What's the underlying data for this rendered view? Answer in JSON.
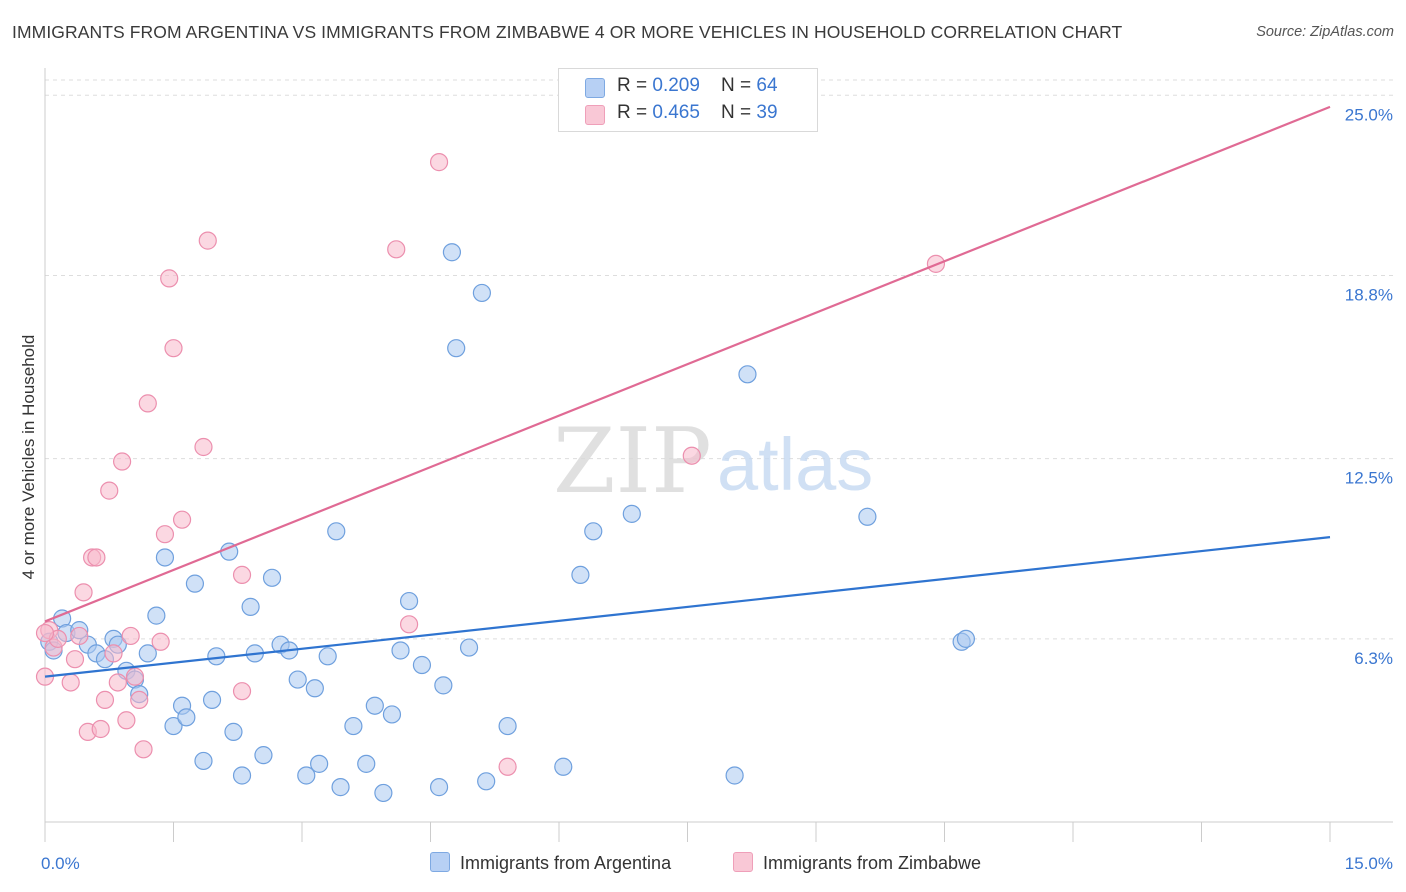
{
  "title": "IMMIGRANTS FROM ARGENTINA VS IMMIGRANTS FROM ZIMBABWE 4 OR MORE VEHICLES IN HOUSEHOLD CORRELATION CHART",
  "source": "Source: ZipAtlas.com",
  "watermark": {
    "zip": "ZIP",
    "atlas": "atlas"
  },
  "legend": {
    "row1": {
      "r_label": "R = ",
      "r_value": "0.209",
      "n_label": "N = ",
      "n_value": "64"
    },
    "row2": {
      "r_label": "R = ",
      "r_value": "0.465",
      "n_label": "N = ",
      "n_value": "39"
    }
  },
  "bottom_legend": {
    "argentina": "Immigrants from Argentina",
    "zimbabwe": "Immigrants from Zimbabwe"
  },
  "colors": {
    "argentina_fill": "#a9c8f0",
    "argentina_stroke": "#6fa0de",
    "argentina_line": "#2f74d0",
    "zimbabwe_fill": "#f7b8cb",
    "zimbabwe_stroke": "#ec8fae",
    "zimbabwe_line": "#e06a94",
    "tick_label": "#3a76d0"
  },
  "chart_data": {
    "type": "scatter",
    "xlabel": "",
    "ylabel": "4 or more Vehicles in Household",
    "xlim": [
      0,
      15
    ],
    "ylim": [
      0,
      25.8
    ],
    "x_ticks": [
      0,
      1.5,
      3,
      4.5,
      6,
      7.5,
      9,
      10.5,
      12,
      13.5,
      15
    ],
    "x_tick_labels": [
      {
        "value": 0,
        "label": "0.0%"
      },
      {
        "value": 15,
        "label": "15.0%"
      }
    ],
    "y_tick_labels": [
      {
        "value": 6.3,
        "label": "6.3%"
      },
      {
        "value": 12.5,
        "label": "12.5%"
      },
      {
        "value": 18.8,
        "label": "18.8%"
      },
      {
        "value": 25.0,
        "label": "25.0%"
      }
    ],
    "grid": true,
    "series": [
      {
        "name": "Immigrants from Argentina",
        "R": 0.209,
        "N": 64,
        "trend": {
          "x": [
            0,
            15
          ],
          "y": [
            5.0,
            9.8
          ]
        },
        "points": [
          [
            0.05,
            6.2
          ],
          [
            0.1,
            5.9
          ],
          [
            0.2,
            7.0
          ],
          [
            0.25,
            6.5
          ],
          [
            0.4,
            6.6
          ],
          [
            0.5,
            6.1
          ],
          [
            0.6,
            5.8
          ],
          [
            0.7,
            5.6
          ],
          [
            0.8,
            6.3
          ],
          [
            0.85,
            6.1
          ],
          [
            0.95,
            5.2
          ],
          [
            1.05,
            4.9
          ],
          [
            1.1,
            4.4
          ],
          [
            1.2,
            5.8
          ],
          [
            1.3,
            7.1
          ],
          [
            1.4,
            9.1
          ],
          [
            1.5,
            3.3
          ],
          [
            1.6,
            4.0
          ],
          [
            1.65,
            3.6
          ],
          [
            1.75,
            8.2
          ],
          [
            1.85,
            2.1
          ],
          [
            1.95,
            4.2
          ],
          [
            2.0,
            5.7
          ],
          [
            2.15,
            9.3
          ],
          [
            2.2,
            3.1
          ],
          [
            2.3,
            1.6
          ],
          [
            2.4,
            7.4
          ],
          [
            2.45,
            5.8
          ],
          [
            2.55,
            2.3
          ],
          [
            2.65,
            8.4
          ],
          [
            2.75,
            6.1
          ],
          [
            2.85,
            5.9
          ],
          [
            2.95,
            4.9
          ],
          [
            3.05,
            1.6
          ],
          [
            3.15,
            4.6
          ],
          [
            3.2,
            2.0
          ],
          [
            3.3,
            5.7
          ],
          [
            3.4,
            10.0
          ],
          [
            3.45,
            1.2
          ],
          [
            3.6,
            3.3
          ],
          [
            3.75,
            2.0
          ],
          [
            3.85,
            4.0
          ],
          [
            3.95,
            1.0
          ],
          [
            4.05,
            3.7
          ],
          [
            4.15,
            5.9
          ],
          [
            4.25,
            7.6
          ],
          [
            4.4,
            5.4
          ],
          [
            4.6,
            1.2
          ],
          [
            4.65,
            4.7
          ],
          [
            4.75,
            19.6
          ],
          [
            4.8,
            16.3
          ],
          [
            4.95,
            6.0
          ],
          [
            5.1,
            18.2
          ],
          [
            5.15,
            1.4
          ],
          [
            5.4,
            3.3
          ],
          [
            6.05,
            1.9
          ],
          [
            6.25,
            8.5
          ],
          [
            6.4,
            10.0
          ],
          [
            6.85,
            10.6
          ],
          [
            8.05,
            1.6
          ],
          [
            8.2,
            15.4
          ],
          [
            9.6,
            10.5
          ],
          [
            10.7,
            6.2
          ],
          [
            10.75,
            6.3
          ]
        ]
      },
      {
        "name": "Immigrants from Zimbabwe",
        "R": 0.465,
        "N": 39,
        "trend": {
          "x": [
            0,
            15
          ],
          "y": [
            6.9,
            24.6
          ]
        },
        "points": [
          [
            0.0,
            5.0
          ],
          [
            0.05,
            6.6
          ],
          [
            0.1,
            6.0
          ],
          [
            0.15,
            6.3
          ],
          [
            0.3,
            4.8
          ],
          [
            0.35,
            5.6
          ],
          [
            0.4,
            6.4
          ],
          [
            0.45,
            7.9
          ],
          [
            0.5,
            3.1
          ],
          [
            0.55,
            9.1
          ],
          [
            0.6,
            9.1
          ],
          [
            0.65,
            3.2
          ],
          [
            0.7,
            4.2
          ],
          [
            0.75,
            11.4
          ],
          [
            0.8,
            5.8
          ],
          [
            0.85,
            4.8
          ],
          [
            0.9,
            12.4
          ],
          [
            0.95,
            3.5
          ],
          [
            1.0,
            6.4
          ],
          [
            1.05,
            5.0
          ],
          [
            1.1,
            4.2
          ],
          [
            1.15,
            2.5
          ],
          [
            1.2,
            14.4
          ],
          [
            1.35,
            6.2
          ],
          [
            1.4,
            9.9
          ],
          [
            1.45,
            18.7
          ],
          [
            1.5,
            16.3
          ],
          [
            1.6,
            10.4
          ],
          [
            1.85,
            12.9
          ],
          [
            1.9,
            20.0
          ],
          [
            2.3,
            8.5
          ],
          [
            2.3,
            4.5
          ],
          [
            4.1,
            19.7
          ],
          [
            4.25,
            6.8
          ],
          [
            4.6,
            22.7
          ],
          [
            5.4,
            1.9
          ],
          [
            7.55,
            12.6
          ],
          [
            10.4,
            19.2
          ],
          [
            0.0,
            6.5
          ]
        ]
      }
    ]
  }
}
